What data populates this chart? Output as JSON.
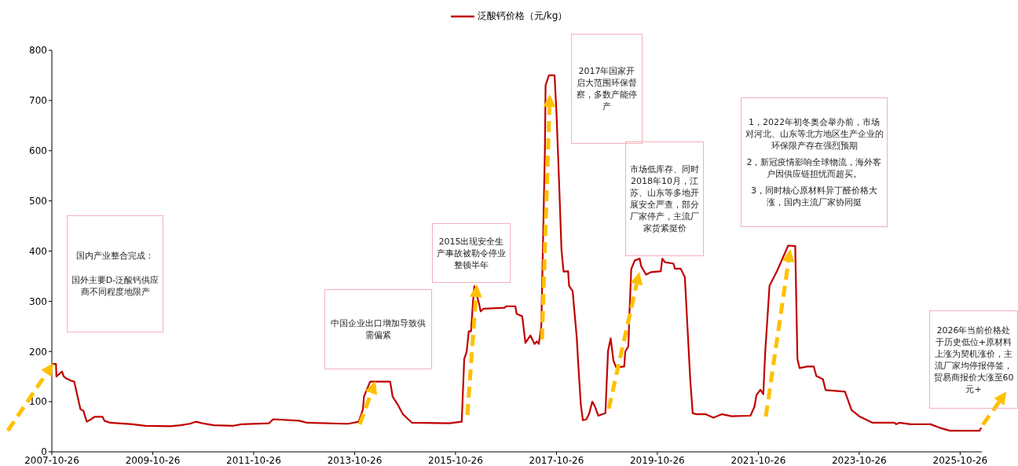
{
  "chart_data": {
    "type": "line",
    "legend": "top",
    "x": [
      "2007-10-26",
      "2007-11-25",
      "2007-11-28",
      "2008-01-08",
      "2008-01-20",
      "2008-02-10",
      "2008-03-10",
      "2008-04-05",
      "2008-05-20",
      "2008-06-10",
      "2008-07-05",
      "2008-08-05",
      "2008-09-01",
      "2008-10-26",
      "2008-11-10",
      "2008-12-20",
      "2009-06-01",
      "2009-09-01",
      "2010-03-01",
      "2010-05-15",
      "2010-07-20",
      "2010-09-01",
      "2010-10-20",
      "2011-01-10",
      "2011-06-01",
      "2011-08-01",
      "2012-02-15",
      "2012-03-15",
      "2012-09-20",
      "2012-11-15",
      "2013-08-15",
      "2013-09-10",
      "2013-11-25",
      "2013-12-25",
      "2014-01-01",
      "2014-02-15",
      "2014-07-10",
      "2014-07-28",
      "2014-09-01",
      "2014-10-10",
      "2014-12-15",
      "2015-09-10",
      "2015-12-10",
      "2015-12-28",
      "2016-01-15",
      "2016-01-30",
      "2016-02-15",
      "2016-03-01",
      "2016-03-10",
      "2016-04-12",
      "2016-04-25",
      "2016-05-15",
      "2016-10-15",
      "2016-10-25",
      "2017-01-01",
      "2017-01-10",
      "2017-02-20",
      "2017-03-15",
      "2017-04-20",
      "2017-05-20",
      "2017-06-05",
      "2017-06-20",
      "2017-07-08",
      "2017-08-03",
      "2017-08-08",
      "2017-09-01",
      "2017-10-12",
      "2017-10-26",
      "2017-11-14",
      "2017-12-01",
      "2017-12-16",
      "2018-01-18",
      "2018-01-25",
      "2018-02-20",
      "2018-03-22",
      "2018-04-01",
      "2018-04-20",
      "2018-05-05",
      "2018-05-30",
      "2018-06-18",
      "2018-07-12",
      "2018-08-01",
      "2018-08-25",
      "2018-10-15",
      "2018-11-03",
      "2018-11-22",
      "2018-12-12",
      "2019-01-01",
      "2019-02-28",
      "2019-03-08",
      "2019-03-30",
      "2019-04-08",
      "2019-04-20",
      "2019-05-15",
      "2019-06-20",
      "2019-07-01",
      "2019-08-05",
      "2019-09-10",
      "2019-11-20",
      "2019-12-01",
      "2019-12-20",
      "2020-02-20",
      "2020-03-01",
      "2020-04-12",
      "2020-05-12",
      "2020-05-30",
      "2020-06-20",
      "2020-07-08",
      "2020-08-05",
      "2020-10-08",
      "2020-12-05",
      "2021-02-05",
      "2021-04-15",
      "2021-08-30",
      "2021-09-28",
      "2021-10-12",
      "2021-11-10",
      "2021-12-01",
      "2021-12-15",
      "2022-01-15",
      "2022-02-01",
      "2022-03-10",
      "2022-05-30",
      "2022-07-20",
      "2022-08-05",
      "2022-08-20",
      "2022-10-15",
      "2022-12-01",
      "2022-12-20",
      "2023-02-05",
      "2023-02-25",
      "2023-07-15",
      "2023-09-01",
      "2023-11-01",
      "2024-01-30",
      "2024-07-08",
      "2024-07-20",
      "2024-08-10",
      "2024-11-01",
      "2025-03-25",
      "2025-05-30",
      "2025-08-15",
      "2026-03-15",
      "2026-03-28"
    ],
    "series": [
      {
        "name": "泛酸钙价格（元/kg）",
        "color": "#c00000",
        "values": [
          175,
          175,
          150,
          160,
          150,
          146,
          142,
          140,
          85,
          82,
          60,
          65,
          70,
          70,
          62,
          58,
          55,
          52,
          51,
          53,
          56,
          60,
          57,
          53,
          52,
          55,
          57,
          65,
          62,
          58,
          56,
          56,
          60,
          85,
          110,
          140,
          140,
          110,
          95,
          75,
          58,
          57,
          60,
          185,
          200,
          240,
          240,
          300,
          330,
          297,
          280,
          285,
          287,
          290,
          290,
          275,
          270,
          217,
          232,
          215,
          220,
          215,
          250,
          600,
          730,
          750,
          750,
          674,
          535,
          403,
          359,
          360,
          331,
          320,
          226,
          177,
          94,
          63,
          65,
          75,
          100,
          90,
          72,
          77,
          201,
          226,
          182,
          168,
          170,
          200,
          210,
          282,
          364,
          381,
          385,
          370,
          353,
          358,
          360,
          385,
          378,
          375,
          365,
          365,
          348,
          254,
          144,
          77,
          75,
          75,
          68,
          75,
          71,
          72,
          90,
          113,
          124,
          115,
          200,
          331,
          340,
          360,
          411,
          410,
          185,
          167,
          170,
          170,
          151,
          145,
          123,
          120,
          83,
          70,
          58,
          58,
          55,
          58,
          55,
          55,
          48,
          42,
          42,
          48
        ]
      }
    ],
    "xlim": [
      "2007-10-26",
      "2026-04-01"
    ],
    "xticks": [
      "2007-10-26",
      "2009-10-26",
      "2011-10-26",
      "2013-10-26",
      "2015-10-26",
      "2017-10-26",
      "2019-10-26",
      "2021-10-26",
      "2023-10-26",
      "2025-10-26"
    ],
    "ylim": [
      0,
      800
    ],
    "yticks": [
      0,
      100,
      200,
      300,
      400,
      500,
      600,
      700,
      800
    ],
    "annotations": [
      "国内产业整合完成：",
      "国外主要D-泛酸钙供应商不同程度地限产",
      "中国企业出口增加导致供需偏紧",
      "2015出现安全生产事故被勒令停业整顿半年",
      "2017年国家开启大范围环保督察，多数产能停产",
      "市场低库存、同时2018年10月，江苏、山东等多地开展安全严查，部分厂家停产，主流厂家货紧挺价",
      "1，2022年初冬奥会举办前，市场对河北、山东等北方地区生产企业的环保限产存在强烈预期",
      "2，新冠疫情影响全球物流，海外客户因供应链担忧而超买。",
      "3，同时核心原材料异丁醛价格大涨，国内主流厂家协同挺",
      {
        "text": "2026年当前价格处于历史低位+原材料上涨为契机涨价，主流厂家均停报停签，贸易商报价大涨至60元+",
        "x": "2026-03-28",
        "y": 48
      }
    ]
  }
}
